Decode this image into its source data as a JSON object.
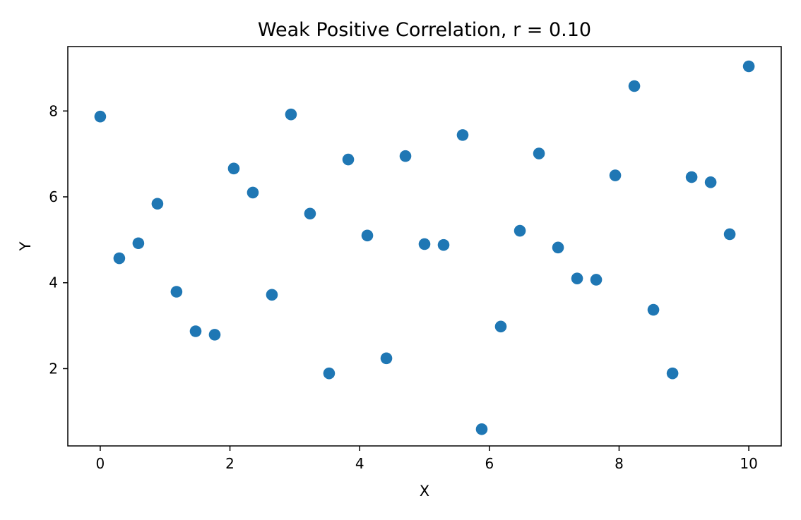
{
  "chart_data": {
    "type": "scatter",
    "title": "Weak Positive Correlation, r = 0.10",
    "xlabel": "X",
    "ylabel": "Y",
    "xlim": [
      -0.5,
      10.5
    ],
    "ylim": [
      0.2,
      9.5
    ],
    "xticks": [
      0,
      2,
      4,
      6,
      8,
      10
    ],
    "yticks": [
      2,
      4,
      6,
      8
    ],
    "grid": false,
    "legend": "none",
    "point_color": "#1f77b4",
    "series": [
      {
        "x": [
          0.0,
          0.294,
          0.588,
          0.882,
          1.176,
          1.471,
          1.765,
          2.059,
          2.353,
          2.647,
          2.941,
          3.235,
          3.529,
          3.824,
          4.118,
          4.412,
          4.706,
          5.0,
          5.294,
          5.588,
          5.882,
          6.176,
          6.471,
          6.765,
          7.059,
          7.353,
          7.647,
          7.941,
          8.235,
          8.529,
          8.824,
          9.118,
          9.412,
          9.706,
          10.0
        ],
        "y": [
          7.87,
          4.57,
          4.92,
          5.84,
          3.79,
          2.87,
          2.79,
          6.66,
          6.1,
          3.72,
          7.92,
          5.61,
          1.89,
          6.87,
          5.1,
          2.24,
          6.95,
          4.9,
          4.88,
          7.44,
          0.59,
          2.98,
          5.21,
          7.01,
          4.82,
          4.1,
          4.07,
          6.5,
          8.58,
          3.37,
          1.89,
          6.46,
          6.34,
          5.13,
          9.04
        ]
      }
    ]
  }
}
